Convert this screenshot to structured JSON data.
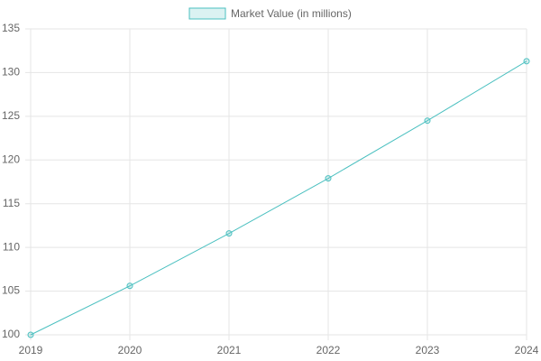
{
  "chart_data": {
    "type": "line",
    "categories": [
      "2019",
      "2020",
      "2021",
      "2022",
      "2023",
      "2024"
    ],
    "series": [
      {
        "name": "Market Value (in millions)",
        "color": "#4bc0c0",
        "values": [
          100,
          105.6,
          111.6,
          117.9,
          124.5,
          131.3
        ]
      }
    ],
    "ylim": [
      100,
      135
    ],
    "yticks": [
      100,
      105,
      110,
      115,
      120,
      125,
      130,
      135
    ],
    "grid": true,
    "legend": "top"
  }
}
